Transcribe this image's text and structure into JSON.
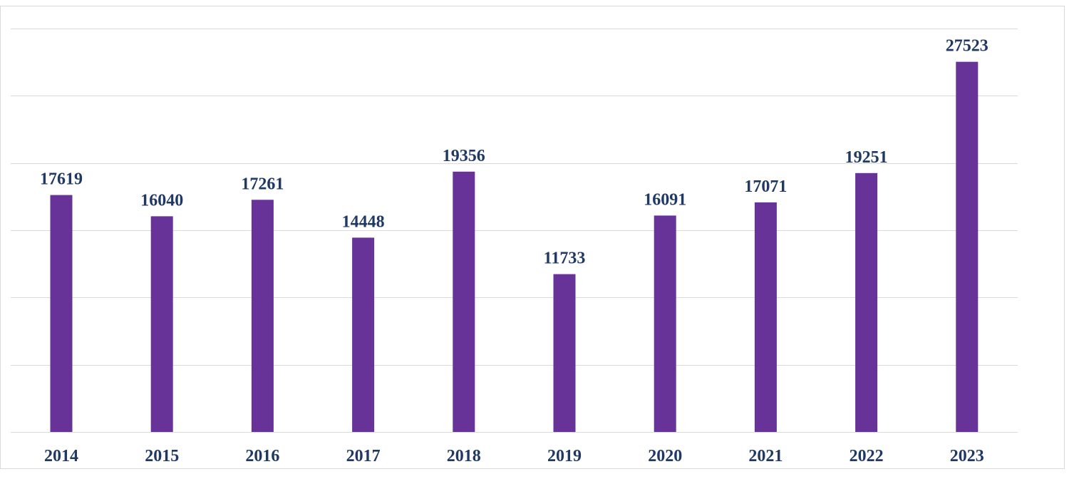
{
  "chart_data": {
    "type": "bar",
    "categories": [
      "2014",
      "2015",
      "2016",
      "2017",
      "2018",
      "2019",
      "2020",
      "2021",
      "2022",
      "2023"
    ],
    "values": [
      17619,
      16040,
      17261,
      14448,
      19356,
      11733,
      16091,
      17071,
      19251,
      27523
    ],
    "value_labels": [
      "17619",
      "16040",
      "17261",
      "14448",
      "19356",
      "11733",
      "16091",
      "17071",
      "19251",
      "27523"
    ],
    "title": "",
    "xlabel": "",
    "ylabel": "",
    "ylim": [
      0,
      30000
    ],
    "grid": true,
    "legend": "none"
  },
  "colors": {
    "bar": "#673399",
    "label": "#1f3864",
    "grid": "#d9d9d9"
  }
}
